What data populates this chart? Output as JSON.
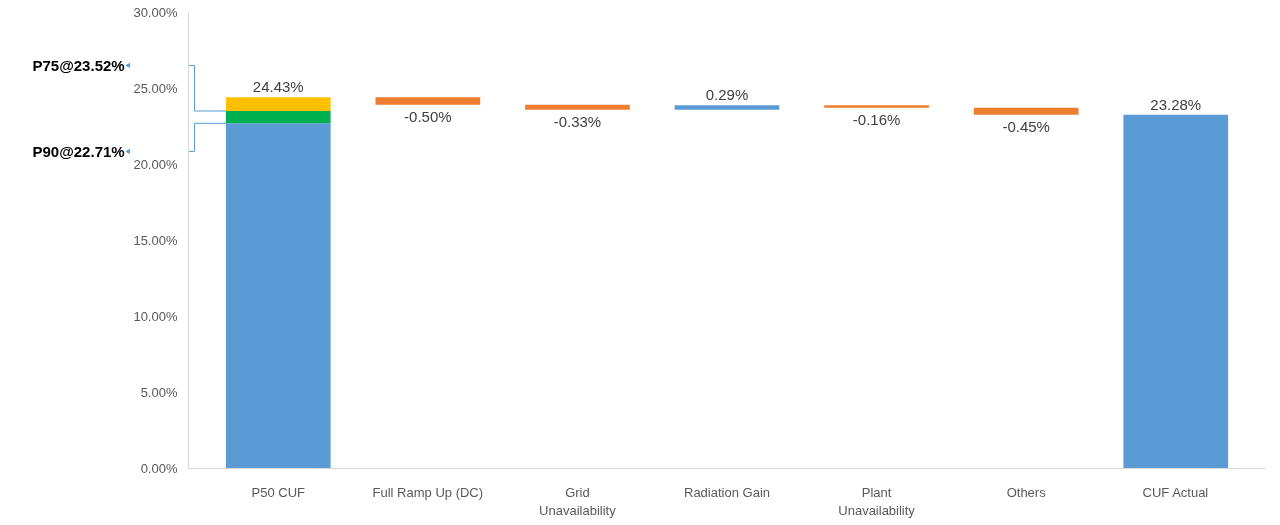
{
  "chart_data": {
    "type": "bar",
    "categories": [
      "P50 CUF",
      "Full Ramp Up (DC)",
      "Grid Unavailability",
      "Radiation Gain",
      "Plant Unavailability",
      "Others",
      "CUF Actual"
    ],
    "series": [
      {
        "colors": [
          "#5b9bd5",
          "#ed7d31",
          "#ed7d31",
          "#5b9bd5",
          "#ed7d31",
          "#ed7d31",
          "#5b9bd5"
        ],
        "base": [
          0,
          24.43,
          23.93,
          23.6,
          23.89,
          23.73,
          0
        ],
        "values": [
          22.71,
          -0.5,
          -0.33,
          0.29,
          -0.16,
          -0.45,
          23.28
        ],
        "value_labels": [
          null,
          "-0.50%",
          "-0.33%",
          "0.29%",
          "-0.16%",
          "-0.45%",
          "23.28%"
        ]
      },
      {
        "color": "#00b050",
        "base": [
          22.71,
          null,
          null,
          null,
          null,
          null,
          null
        ],
        "values": [
          0.81,
          null,
          null,
          null,
          null,
          null,
          null
        ]
      },
      {
        "color": "#ffc000",
        "base": [
          23.52,
          null,
          null,
          null,
          null,
          null,
          null
        ],
        "values": [
          0.91,
          null,
          null,
          null,
          null,
          null,
          null
        ],
        "value_labels": [
          "24.43%",
          null,
          null,
          null,
          null,
          null,
          null
        ]
      }
    ],
    "annotations": [
      "P75@23.52%",
      "P90@22.71%"
    ],
    "ylim": [
      0,
      30
    ],
    "yticks": [
      {
        "value": 0,
        "label": "0.00%"
      },
      {
        "value": 5,
        "label": "5.00%"
      },
      {
        "value": 10,
        "label": "10.00%"
      },
      {
        "value": 15,
        "label": "15.00%"
      },
      {
        "value": 20,
        "label": "20.00%"
      },
      {
        "value": 25,
        "label": "25.00%"
      },
      {
        "value": 30,
        "label": "30.00%"
      }
    ],
    "grid": false
  }
}
